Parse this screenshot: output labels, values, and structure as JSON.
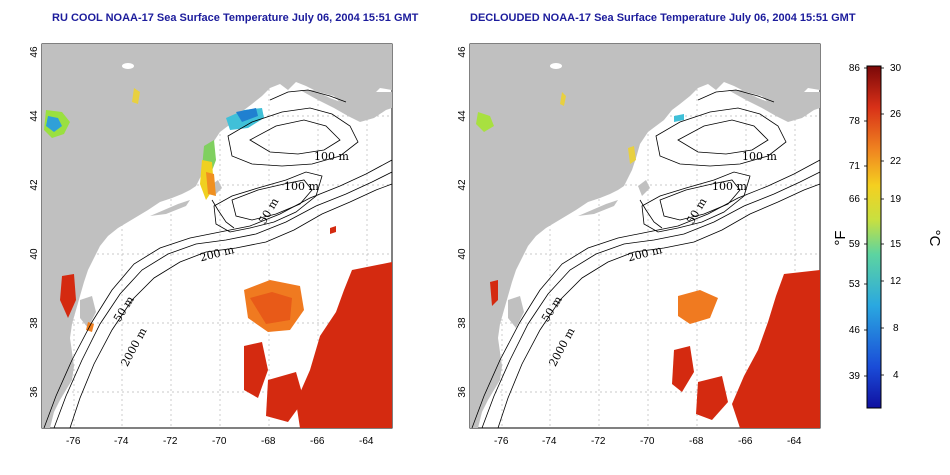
{
  "panels": [
    {
      "title": "RU COOL NOAA-17 Sea Surface Temperature July 06, 2004 15:51 GMT",
      "contour_labels": [
        "100 m",
        "100 m",
        "50 m",
        "200 m",
        "50 m",
        "2000 m"
      ]
    },
    {
      "title": "DECLOUDED NOAA-17 Sea Surface Temperature July 06, 2004 15:51 GMT",
      "contour_labels": [
        "100 m",
        "100 m",
        "50 m",
        "200 m",
        "50 m",
        "2000 m"
      ]
    }
  ],
  "axes": {
    "lon_ticks": [
      "-76",
      "-74",
      "-72",
      "-70",
      "-68",
      "-66",
      "-64"
    ],
    "lat_ticks": [
      "46",
      "44",
      "42",
      "40",
      "38",
      "36"
    ]
  },
  "colorbar": {
    "fahrenheit_ticks": [
      "86",
      "78",
      "71",
      "66",
      "59",
      "53",
      "46",
      "39"
    ],
    "celsius_ticks": [
      "30",
      "26",
      "22",
      "19",
      "15",
      "12",
      "8",
      "4"
    ],
    "fahrenheit_unit": "°F",
    "celsius_unit": "°C"
  },
  "colors": {
    "title": "#1c1c9c",
    "land": "#c0c0c0",
    "warm": "#d42a10",
    "cool": "#2fa0d8"
  }
}
